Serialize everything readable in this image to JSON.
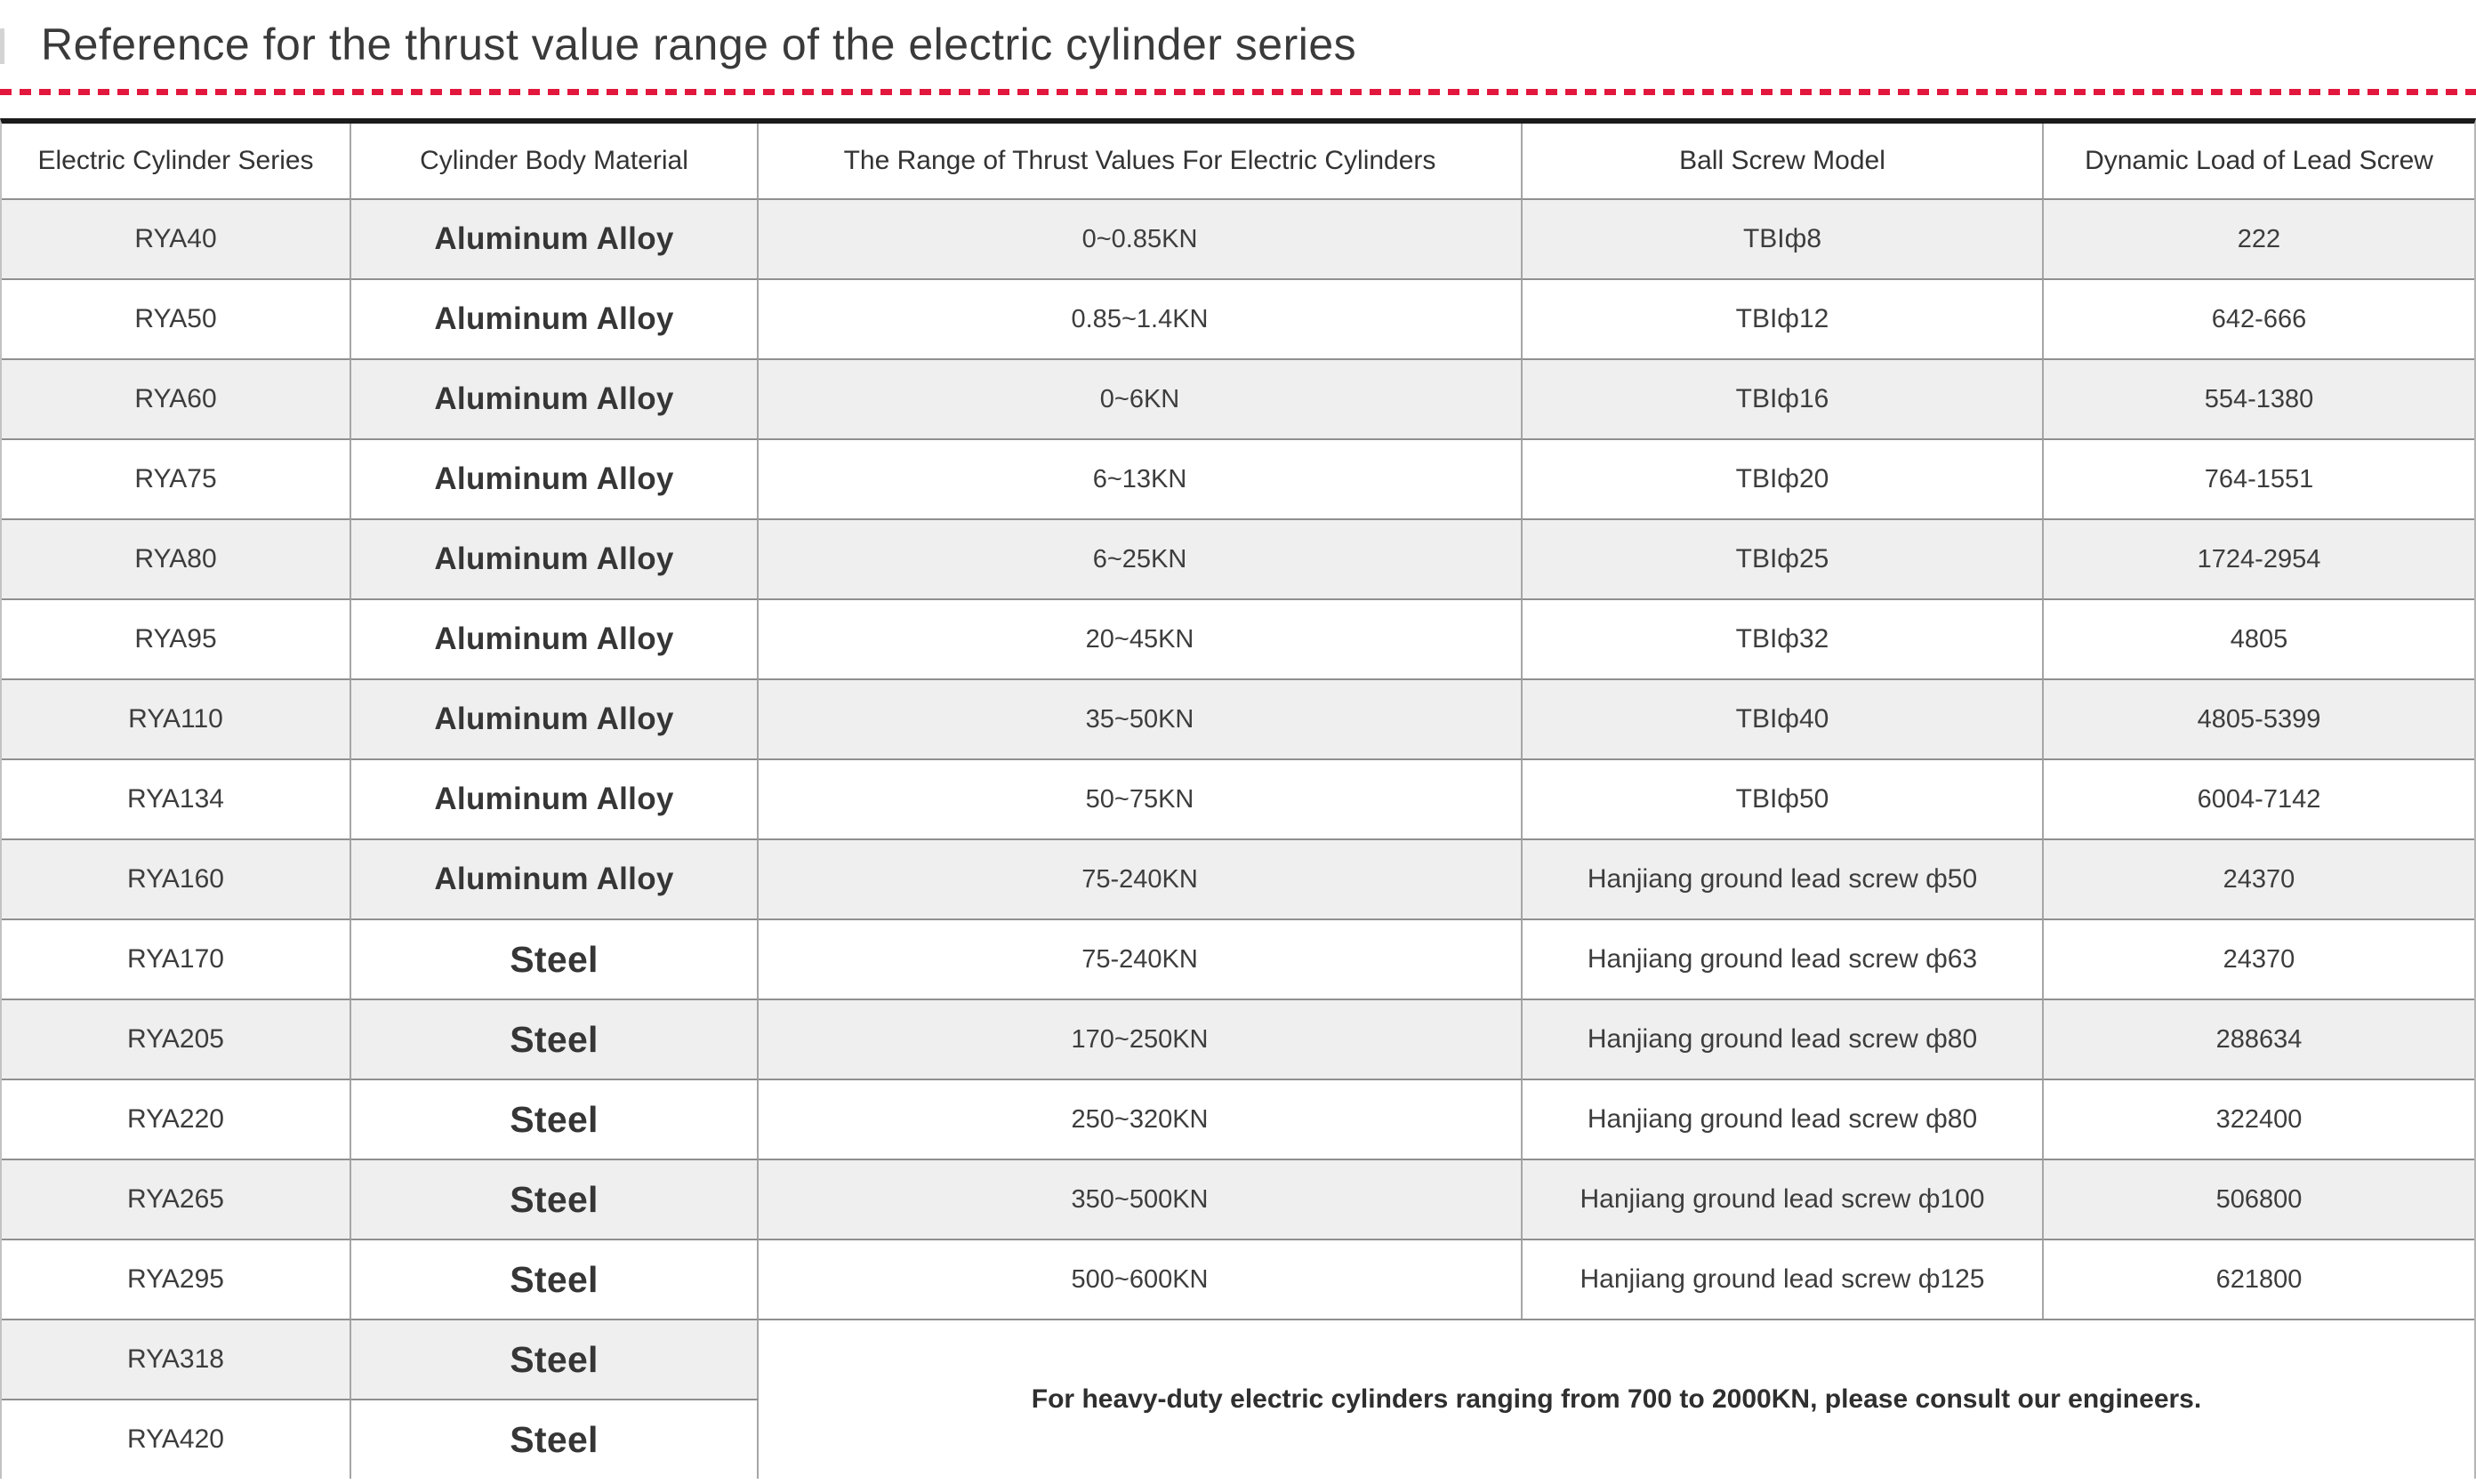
{
  "page": {
    "title": "Reference for the thrust value range of the electric cylinder series"
  },
  "colors": {
    "accent_red": "#e2173d",
    "row_shade": "#efefef",
    "table_top_bar": "#1b1b1b",
    "grid_line": "#8f8f8f",
    "text": "#3d3d3d"
  },
  "table": {
    "headers": [
      "Electric Cylinder Series",
      "Cylinder Body Material",
      "The Range of Thrust Values For Electric Cylinders",
      "Ball Screw Model",
      "Dynamic Load of Lead Screw"
    ],
    "rows": [
      {
        "series": "RYA40",
        "material": "Aluminum Alloy",
        "thrust": "0~0.85KN",
        "ball_screw": "TBIф8",
        "dynamic_load": "222"
      },
      {
        "series": "RYA50",
        "material": "Aluminum Alloy",
        "thrust": "0.85~1.4KN",
        "ball_screw": "TBIф12",
        "dynamic_load": "642-666"
      },
      {
        "series": "RYA60",
        "material": "Aluminum Alloy",
        "thrust": "0~6KN",
        "ball_screw": "TBIф16",
        "dynamic_load": "554-1380"
      },
      {
        "series": "RYA75",
        "material": "Aluminum Alloy",
        "thrust": "6~13KN",
        "ball_screw": "TBIф20",
        "dynamic_load": "764-1551"
      },
      {
        "series": "RYA80",
        "material": "Aluminum Alloy",
        "thrust": "6~25KN",
        "ball_screw": "TBIф25",
        "dynamic_load": "1724-2954"
      },
      {
        "series": "RYA95",
        "material": "Aluminum Alloy",
        "thrust": "20~45KN",
        "ball_screw": "TBIф32",
        "dynamic_load": "4805"
      },
      {
        "series": "RYA110",
        "material": "Aluminum Alloy",
        "thrust": "35~50KN",
        "ball_screw": "TBIф40",
        "dynamic_load": "4805-5399"
      },
      {
        "series": "RYA134",
        "material": "Aluminum Alloy",
        "thrust": "50~75KN",
        "ball_screw": "TBIф50",
        "dynamic_load": "6004-7142"
      },
      {
        "series": "RYA160",
        "material": "Aluminum Alloy",
        "thrust": "75-240KN",
        "ball_screw": "Hanjiang ground lead screw ф50",
        "dynamic_load": "24370"
      },
      {
        "series": "RYA170",
        "material": "Steel",
        "thrust": "75-240KN",
        "ball_screw": "Hanjiang ground lead screw ф63",
        "dynamic_load": "24370"
      },
      {
        "series": "RYA205",
        "material": "Steel",
        "thrust": "170~250KN",
        "ball_screw": "Hanjiang ground lead screw ф80",
        "dynamic_load": "288634"
      },
      {
        "series": "RYA220",
        "material": "Steel",
        "thrust": "250~320KN",
        "ball_screw": "Hanjiang ground lead screw ф80",
        "dynamic_load": "322400"
      },
      {
        "series": "RYA265",
        "material": "Steel",
        "thrust": "350~500KN",
        "ball_screw": "Hanjiang ground lead screw ф100",
        "dynamic_load": "506800"
      },
      {
        "series": "RYA295",
        "material": "Steel",
        "thrust": "500~600KN",
        "ball_screw": "Hanjiang ground lead screw ф125",
        "dynamic_load": "621800"
      }
    ],
    "partial_rows": [
      {
        "series": "RYA318",
        "material": "Steel"
      },
      {
        "series": "RYA420",
        "material": "Steel"
      }
    ],
    "note": "For heavy-duty electric cylinders ranging from 700 to 2000KN, please consult our engineers."
  }
}
